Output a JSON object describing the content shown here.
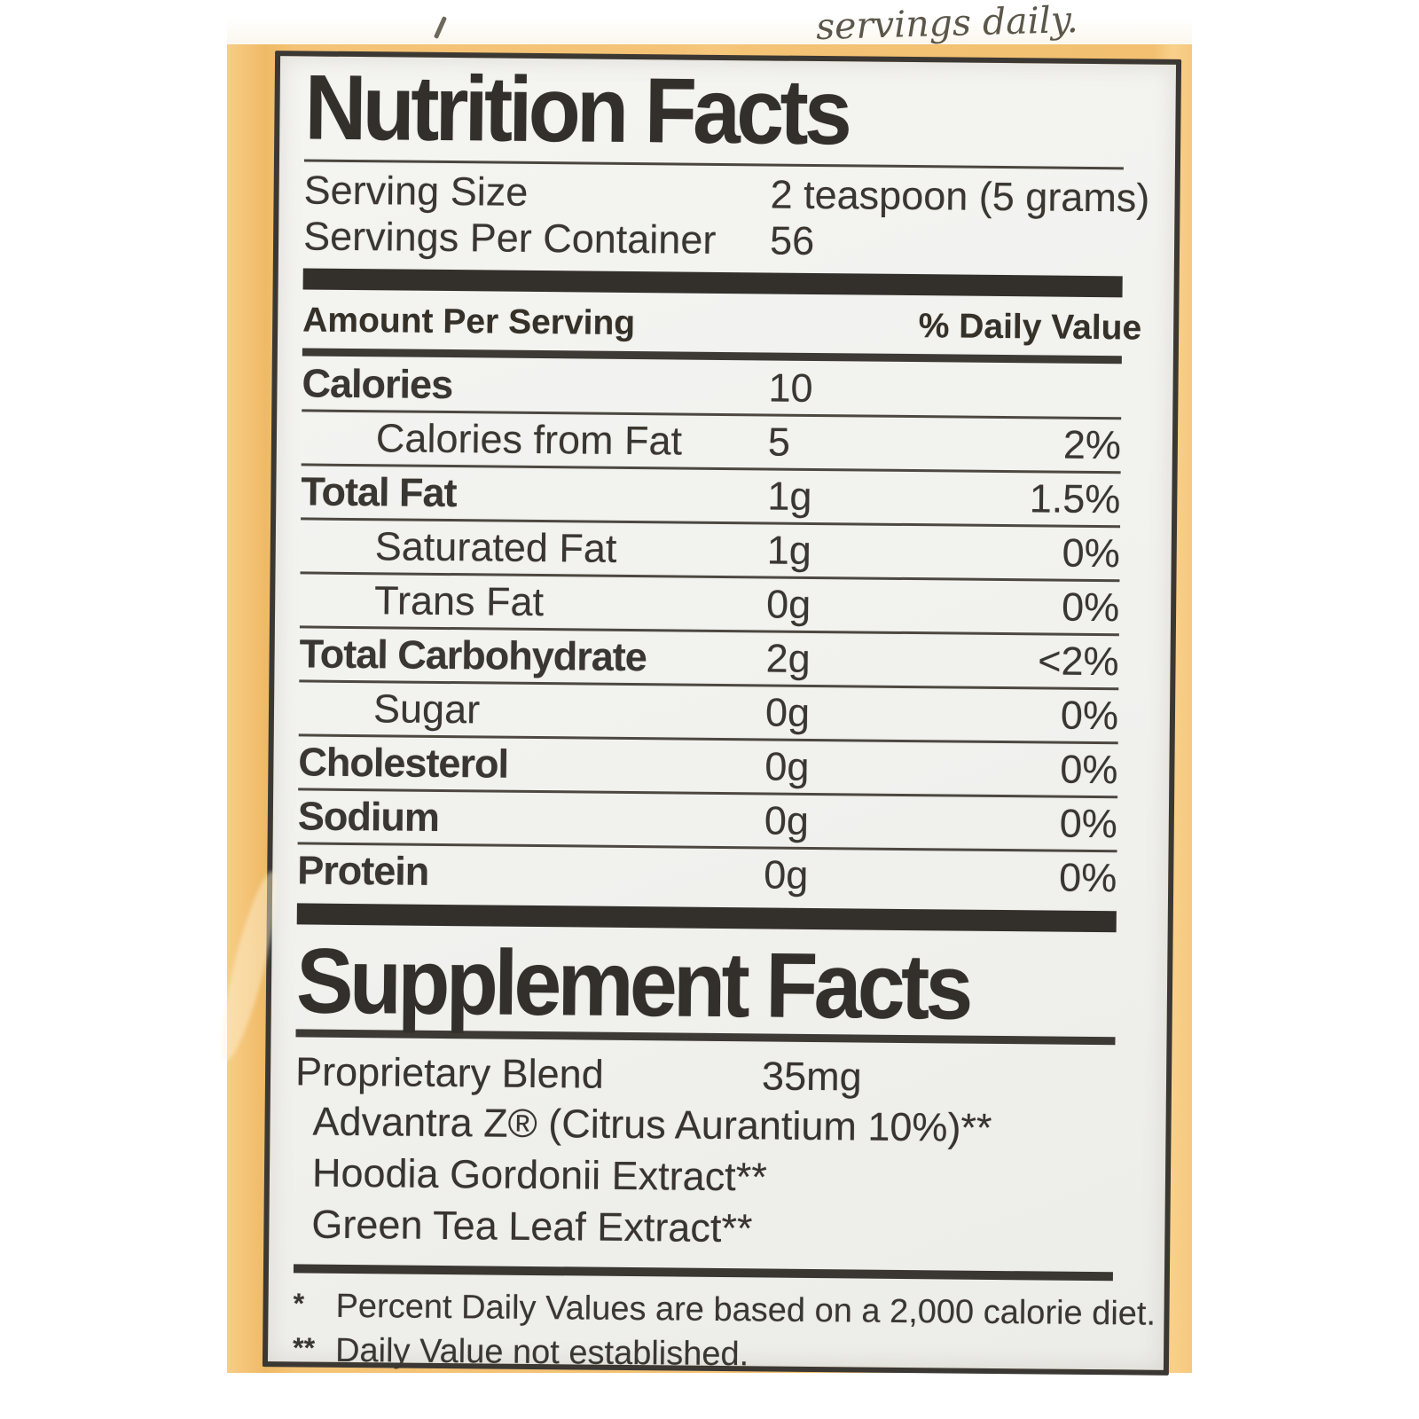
{
  "photo": {
    "top_clipped_text": "servings daily."
  },
  "nutrition": {
    "title": "Nutrition Facts",
    "serving_size_label": "Serving Size",
    "serving_size_value": "2 teaspoon (5 grams)",
    "servings_per_container_label": "Servings Per Container",
    "servings_per_container_value": "56",
    "amount_per_serving_header": "Amount Per Serving",
    "daily_value_header": "% Daily Value",
    "rows": [
      {
        "name": "Calories",
        "amount": "10",
        "dv": ""
      },
      {
        "name": "Calories from Fat",
        "amount": "5",
        "dv": "2%"
      },
      {
        "name": "Total Fat",
        "amount": "1g",
        "dv": "1.5%"
      },
      {
        "name": "Saturated Fat",
        "amount": "1g",
        "dv": "0%"
      },
      {
        "name": "Trans Fat",
        "amount": "0g",
        "dv": "0%"
      },
      {
        "name": "Total Carbohydrate",
        "amount": "2g",
        "dv": "<2%"
      },
      {
        "name": "Sugar",
        "amount": "0g",
        "dv": "0%"
      },
      {
        "name": "Cholesterol",
        "amount": "0g",
        "dv": "0%"
      },
      {
        "name": "Sodium",
        "amount": "0g",
        "dv": "0%"
      },
      {
        "name": "Protein",
        "amount": "0g",
        "dv": "0%"
      }
    ]
  },
  "supplement": {
    "title": "Supplement Facts",
    "blend_name": "Proprietary Blend",
    "blend_amount": "35mg",
    "ingredients": [
      "Advantra Z® (Citrus Aurantium 10%)**",
      "Hoodia Gordonii Extract**",
      "Green Tea Leaf Extract**"
    ]
  },
  "footnotes": [
    {
      "marker": "*",
      "text": "Percent Daily Values are based on a 2,000 calorie diet."
    },
    {
      "marker": "**",
      "text": "Daily Value not established."
    }
  ],
  "colors": {
    "photo_background": "#f4c375",
    "label_paper": "#f1f1ee",
    "ink": "#3a3631"
  }
}
